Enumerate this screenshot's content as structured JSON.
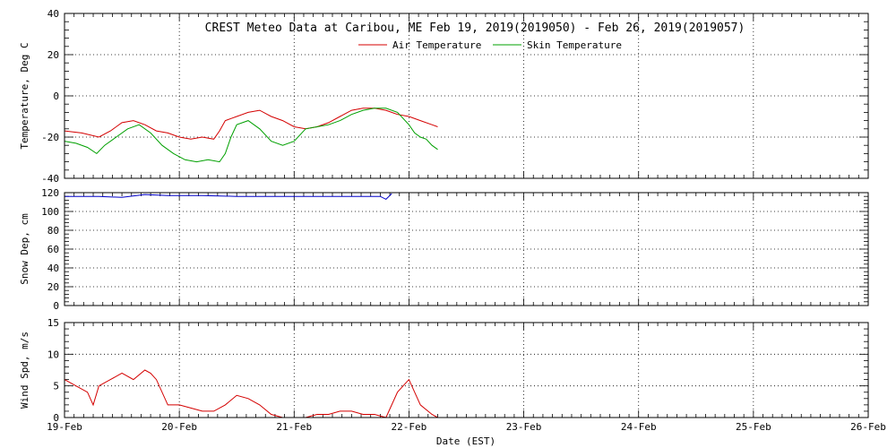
{
  "chart_data": {
    "type": "line",
    "title": "CREST Meteo Data at Caribou, ME   Feb 19, 2019(2019050) - Feb 26, 2019(2019057)",
    "xlabel": "Date (EST)",
    "x_ticks": [
      "19-Feb",
      "20-Feb",
      "21-Feb",
      "22-Feb",
      "23-Feb",
      "24-Feb",
      "25-Feb",
      "26-Feb"
    ],
    "xlim_days": [
      0,
      7
    ],
    "grid": true,
    "legend_placement": "top-center",
    "panels": [
      {
        "id": "temperature",
        "ylabel": "Temperature, Deg C",
        "ylim": [
          -40,
          40
        ],
        "yticks": [
          -40,
          -20,
          0,
          20,
          40
        ],
        "ygrid": [
          -40,
          -20,
          0,
          20
        ],
        "series": [
          {
            "name": "Air Temperature",
            "color": "#d40000",
            "x": [
              0,
              0.15,
              0.3,
              0.4,
              0.5,
              0.6,
              0.7,
              0.8,
              0.9,
              1.0,
              1.1,
              1.2,
              1.3,
              1.35,
              1.4,
              1.45,
              1.5,
              1.6,
              1.7,
              1.8,
              1.9,
              2.0,
              2.1,
              2.2,
              2.3,
              2.4,
              2.5,
              2.6,
              2.7,
              2.8,
              2.9,
              3.0,
              3.1,
              3.2,
              3.25
            ],
            "y": [
              -17,
              -18,
              -20,
              -17,
              -13,
              -12,
              -14,
              -17,
              -18,
              -20,
              -21,
              -20,
              -21,
              -17,
              -12,
              -11,
              -10,
              -8,
              -7,
              -10,
              -12,
              -15,
              -16,
              -15,
              -13,
              -10,
              -7,
              -6,
              -6,
              -7,
              -9,
              -10,
              -12,
              -14,
              -15
            ]
          },
          {
            "name": "Skin Temperature",
            "color": "#00a000",
            "x": [
              0,
              0.1,
              0.2,
              0.28,
              0.35,
              0.45,
              0.55,
              0.65,
              0.75,
              0.85,
              0.95,
              1.05,
              1.15,
              1.25,
              1.35,
              1.4,
              1.45,
              1.5,
              1.6,
              1.7,
              1.8,
              1.9,
              2.0,
              2.1,
              2.2,
              2.3,
              2.4,
              2.5,
              2.6,
              2.7,
              2.8,
              2.9,
              3.0,
              3.05,
              3.1,
              3.15,
              3.2,
              3.25
            ],
            "y": [
              -22,
              -23,
              -25,
              -28,
              -24,
              -20,
              -16,
              -14,
              -18,
              -24,
              -28,
              -31,
              -32,
              -31,
              -32,
              -28,
              -20,
              -14,
              -12,
              -16,
              -22,
              -24,
              -22,
              -16,
              -15,
              -14,
              -12,
              -9,
              -7,
              -6,
              -6,
              -8,
              -14,
              -18,
              -20,
              -21,
              -24,
              -26
            ]
          }
        ]
      },
      {
        "id": "snow",
        "ylabel": "Snow Dep, cm",
        "ylim": [
          0,
          120
        ],
        "yticks": [
          0,
          20,
          40,
          60,
          80,
          100,
          120
        ],
        "ygrid": [
          0,
          20,
          40,
          60,
          80,
          100,
          120
        ],
        "series": [
          {
            "name": "",
            "color": "#0000c8",
            "x": [
              0,
              0.3,
              0.5,
              0.7,
              0.9,
              1.2,
              1.5,
              1.8,
              2.0,
              2.3,
              2.6,
              2.75,
              2.8,
              2.85
            ],
            "y": [
              116,
              116,
              115,
              118,
              117,
              117,
              116,
              116,
              116,
              116,
              116,
              116,
              113,
              119
            ]
          }
        ]
      },
      {
        "id": "wind",
        "ylabel": "Wind Spd, m/s",
        "ylim": [
          0,
          15
        ],
        "yticks": [
          0,
          5,
          10,
          15
        ],
        "ygrid": [
          0,
          5,
          10,
          15
        ],
        "series": [
          {
            "name": "",
            "color": "#d40000",
            "x": [
              0,
              0.1,
              0.2,
              0.25,
              0.3,
              0.4,
              0.5,
              0.6,
              0.7,
              0.75,
              0.8,
              0.9,
              1.0,
              1.1,
              1.2,
              1.3,
              1.4,
              1.5,
              1.6,
              1.7,
              1.8,
              1.9,
              2.0,
              2.1,
              2.2,
              2.3,
              2.4,
              2.5,
              2.6,
              2.7,
              2.8,
              2.9,
              3.0,
              3.1,
              3.2,
              3.25
            ],
            "y": [
              6,
              5,
              4,
              2,
              5,
              6,
              7,
              6,
              7.5,
              7,
              6,
              2,
              2,
              1.5,
              1,
              1,
              2,
              3.5,
              3,
              2,
              0.5,
              0,
              0,
              0,
              0.5,
              0.5,
              1,
              1,
              0.5,
              0.5,
              0,
              4,
              6,
              2,
              0.5,
              0
            ]
          }
        ]
      }
    ]
  }
}
